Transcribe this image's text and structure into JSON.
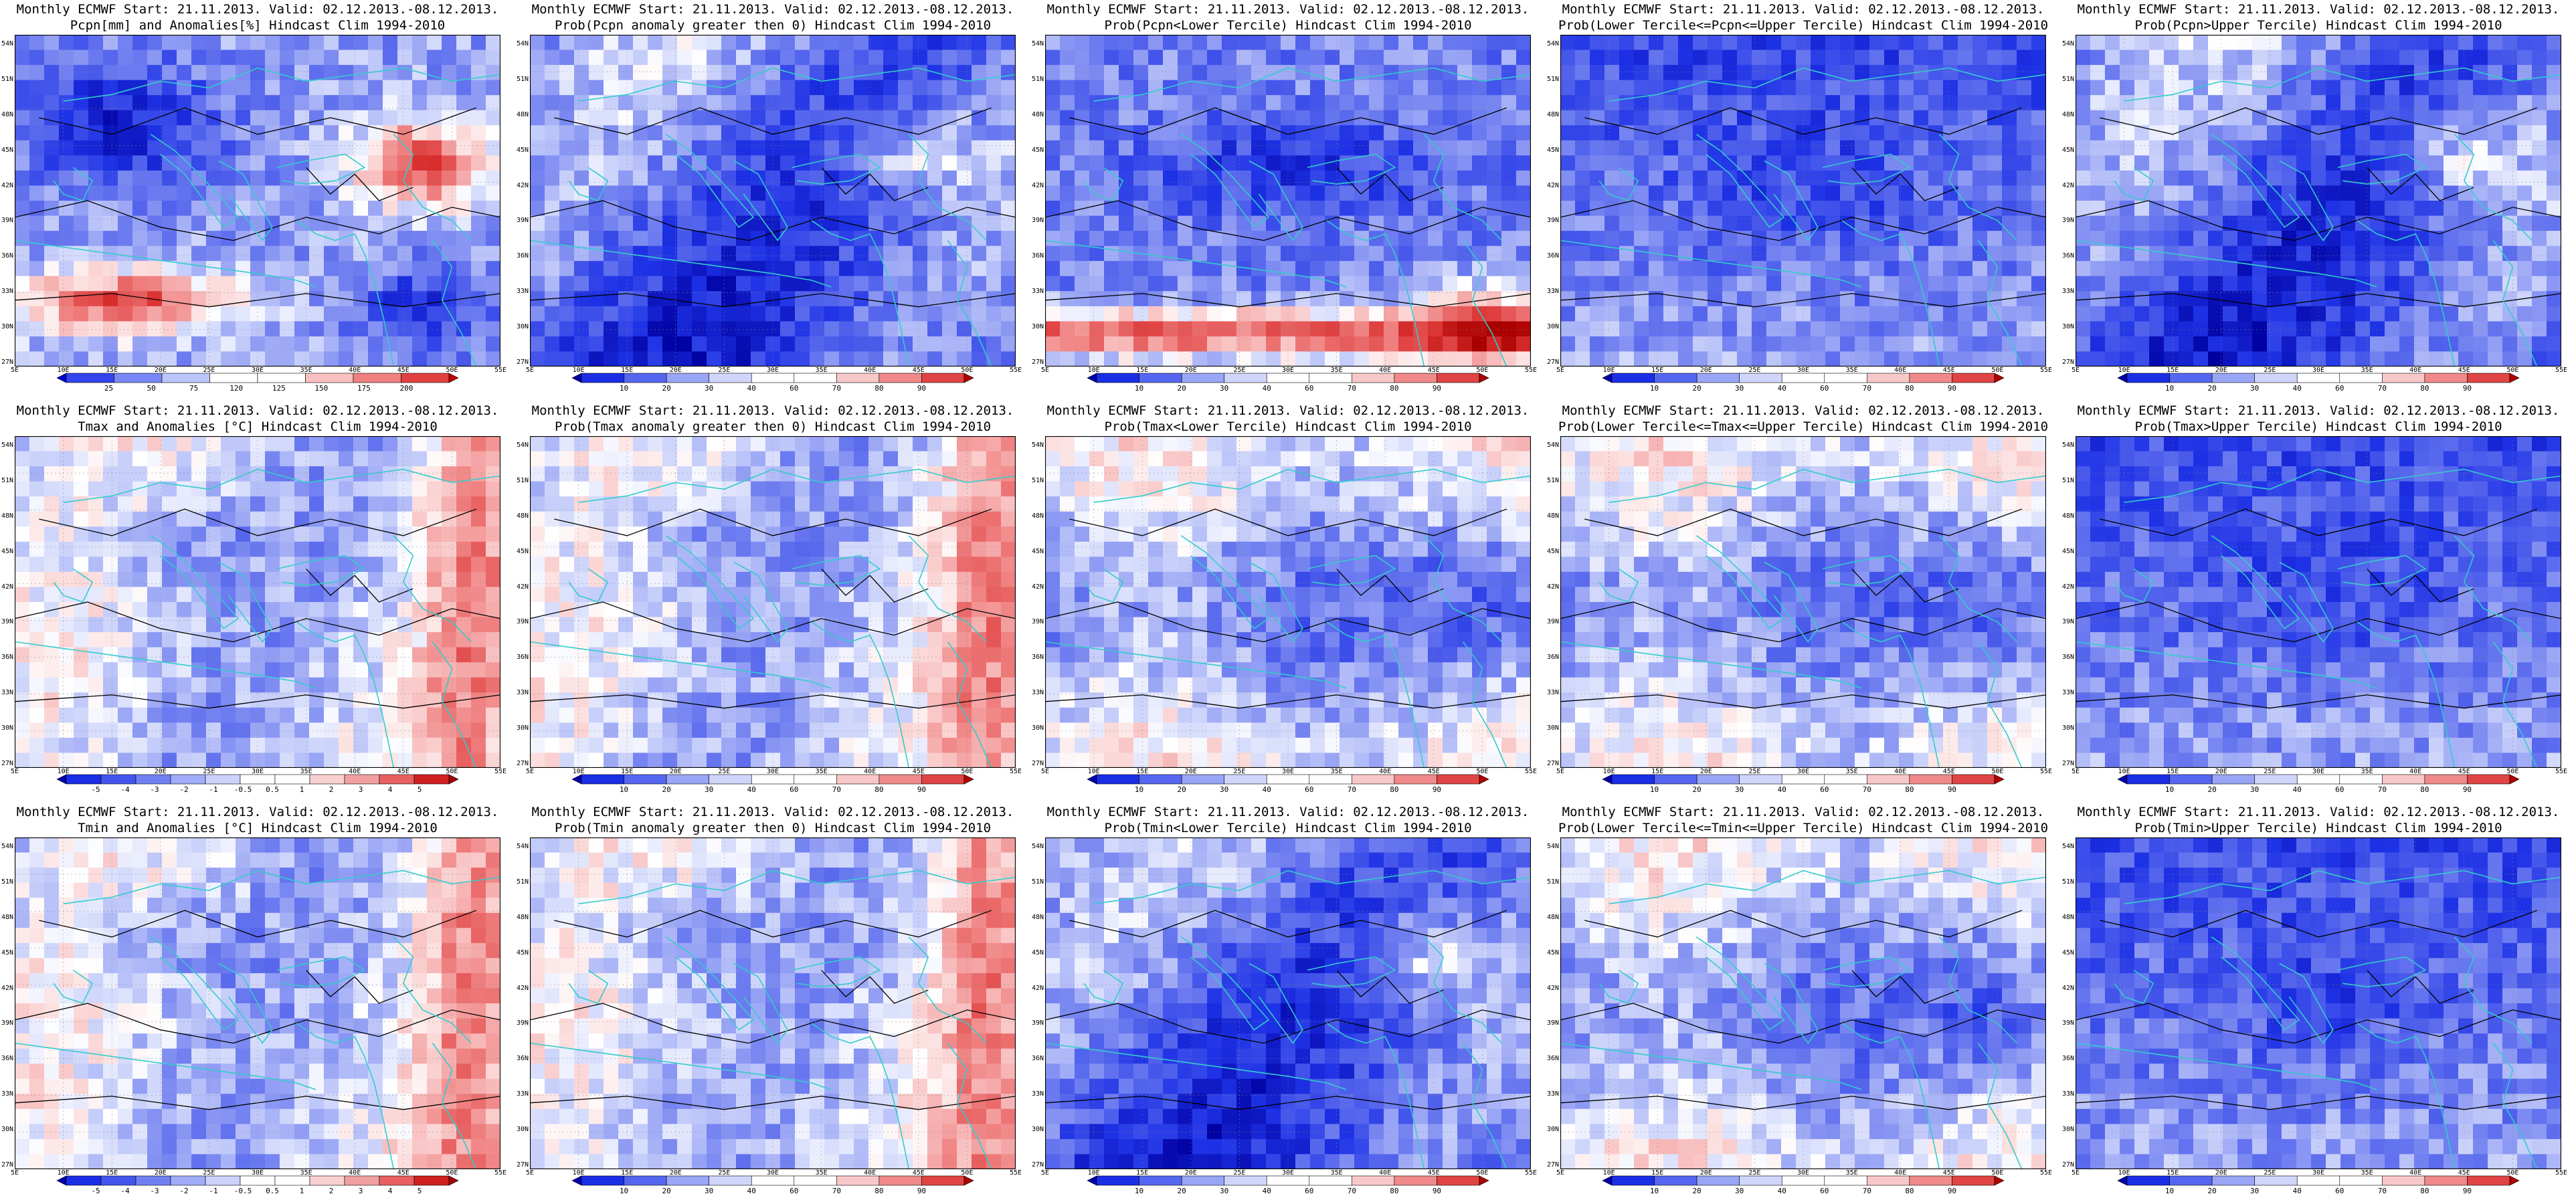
{
  "panels": [
    {
      "id": "pcpn-anom",
      "title1": "Monthly ECMWF Start: 21.11.2013. Valid: 02.12.2013.-08.12.2013.",
      "title2": "Pcpn[mm] and Anomalies[%] Hindcast Clim 1994-2010",
      "legend": "pct",
      "field": "rain-anom"
    },
    {
      "id": "pcpn-prob-pos",
      "title1": "Monthly ECMWF Start: 21.11.2013. Valid: 02.12.2013.-08.12.2013.",
      "title2": "Prob(Pcpn anomaly greater then 0) Hindcast Clim 1994-2010",
      "legend": "prob",
      "field": "blue-mid"
    },
    {
      "id": "pcpn-prob-lower",
      "title1": "Monthly ECMWF Start: 21.11.2013. Valid: 02.12.2013.-08.12.2013.",
      "title2": "Prob(Pcpn<Lower Tercile) Hindcast Clim 1994-2010",
      "legend": "prob",
      "field": "rain-lower"
    },
    {
      "id": "pcpn-prob-middle",
      "title1": "Monthly ECMWF Start: 21.11.2013. Valid: 02.12.2013.-08.12.2013.",
      "title2": "Prob(Lower Tercile<=Pcpn<=Upper Tercile) Hindcast Clim 1994-2010",
      "legend": "prob",
      "field": "blue-strong"
    },
    {
      "id": "pcpn-prob-upper",
      "title1": "Monthly ECMWF Start: 21.11.2013. Valid: 02.12.2013.-08.12.2013.",
      "title2": "Prob(Pcpn>Upper Tercile) Hindcast Clim 1994-2010",
      "legend": "prob",
      "field": "blue-mid"
    },
    {
      "id": "tmax-anom",
      "title1": "Monthly ECMWF Start: 21.11.2013. Valid: 02.12.2013.-08.12.2013.",
      "title2": "Tmax and Anomalies [°C] Hindcast Clim 1994-2010",
      "legend": "temp",
      "field": "temp-light"
    },
    {
      "id": "tmax-prob-pos",
      "title1": "Monthly ECMWF Start: 21.11.2013. Valid: 02.12.2013.-08.12.2013.",
      "title2": "Prob(Tmax anomaly greater then 0) Hindcast Clim 1994-2010",
      "legend": "prob",
      "field": "temp-light"
    },
    {
      "id": "tmax-prob-lower",
      "title1": "Monthly ECMWF Start: 21.11.2013. Valid: 02.12.2013.-08.12.2013.",
      "title2": "Prob(Tmax<Lower Tercile) Hindcast Clim 1994-2010",
      "legend": "prob",
      "field": "blue-light"
    },
    {
      "id": "tmax-prob-middle",
      "title1": "Monthly ECMWF Start: 21.11.2013. Valid: 02.12.2013.-08.12.2013.",
      "title2": "Prob(Lower Tercile<=Tmax<=Upper Tercile) Hindcast Clim 1994-2010",
      "legend": "prob",
      "field": "blue-light"
    },
    {
      "id": "tmax-prob-upper",
      "title1": "Monthly ECMWF Start: 21.11.2013. Valid: 02.12.2013.-08.12.2013.",
      "title2": "Prob(Tmax>Upper Tercile) Hindcast Clim 1994-2010",
      "legend": "prob",
      "field": "blue-strong"
    },
    {
      "id": "tmin-anom",
      "title1": "Monthly ECMWF Start: 21.11.2013. Valid: 02.12.2013.-08.12.2013.",
      "title2": "Tmin and Anomalies [°C] Hindcast Clim 1994-2010",
      "legend": "temp",
      "field": "temp-light"
    },
    {
      "id": "tmin-prob-pos",
      "title1": "Monthly ECMWF Start: 21.11.2013. Valid: 02.12.2013.-08.12.2013.",
      "title2": "Prob(Tmin anomaly greater then 0) Hindcast Clim 1994-2010",
      "legend": "prob",
      "field": "temp-light"
    },
    {
      "id": "tmin-prob-lower",
      "title1": "Monthly ECMWF Start: 21.11.2013. Valid: 02.12.2013.-08.12.2013.",
      "title2": "Prob(Tmin<Lower Tercile) Hindcast Clim 1994-2010",
      "legend": "prob",
      "field": "blue-mid"
    },
    {
      "id": "tmin-prob-middle",
      "title1": "Monthly ECMWF Start: 21.11.2013. Valid: 02.12.2013.-08.12.2013.",
      "title2": "Prob(Lower Tercile<=Tmin<=Upper Tercile) Hindcast Clim 1994-2010",
      "legend": "prob",
      "field": "blue-light"
    },
    {
      "id": "tmin-prob-upper",
      "title1": "Monthly ECMWF Start: 21.11.2013. Valid: 02.12.2013.-08.12.2013.",
      "title2": "Prob(Tmin>Upper Tercile) Hindcast Clim 1994-2010",
      "legend": "prob",
      "field": "blue-strong"
    }
  ],
  "axes": {
    "x_labels": [
      "5E",
      "10E",
      "15E",
      "20E",
      "25E",
      "30E",
      "35E",
      "40E",
      "45E",
      "50E",
      "55E"
    ],
    "y_labels": [
      "54N",
      "51N",
      "48N",
      "45N",
      "42N",
      "39N",
      "36N",
      "33N",
      "30N",
      "27N"
    ]
  },
  "legends": {
    "pct": {
      "ticks": [
        "25",
        "50",
        "75",
        "120",
        "125",
        "150",
        "175",
        "200"
      ],
      "colors": [
        "#0000cc",
        "#3344ee",
        "#7788f6",
        "#bbc4fb",
        "#ffffff",
        "#ffffff",
        "#f8c0c0",
        "#f08080",
        "#e04040",
        "#c00000"
      ]
    },
    "prob": {
      "ticks": [
        "10",
        "20",
        "30",
        "40",
        "60",
        "70",
        "80",
        "90"
      ],
      "colors": [
        "#0000aa",
        "#1a2ee6",
        "#5566f0",
        "#99a6f6",
        "#d0d6fb",
        "#ffffff",
        "#ffffff",
        "#f8c8c8",
        "#f08a8a",
        "#e04444",
        "#b00000"
      ]
    },
    "temp": {
      "ticks": [
        "-5",
        "-4",
        "-3",
        "-2",
        "-1",
        "-0.5",
        "0.5",
        "1",
        "2",
        "3",
        "4",
        "5"
      ],
      "colors": [
        "#0000aa",
        "#1a2ee6",
        "#4455ee",
        "#7080f3",
        "#a0acf8",
        "#ccd2fb",
        "#ffffff",
        "#ffffff",
        "#f8d0d0",
        "#f0a0a0",
        "#e86060",
        "#d02020",
        "#a00000"
      ]
    }
  },
  "colors": {
    "coast": "#33cccc",
    "contour": "#000000",
    "frame": "#000000"
  }
}
